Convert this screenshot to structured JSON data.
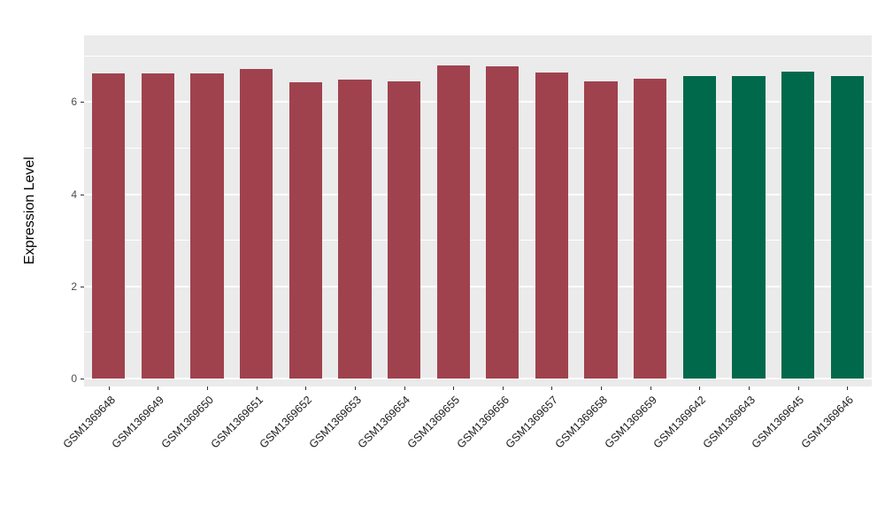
{
  "figure": {
    "background": "#FFFFFF",
    "panel_background": "#EBEBEB",
    "grid_color": "#FFFFFF",
    "tick_color": "#333333",
    "text_color": "#1a1a1a"
  },
  "chart_data": {
    "type": "bar",
    "title": "",
    "xlabel": "",
    "ylabel": "Expression Level",
    "ylim": [
      -0.18,
      7.45
    ],
    "yticks": [
      0,
      2,
      4,
      6
    ],
    "yticks_minor": [
      1,
      3,
      5,
      7
    ],
    "grid": true,
    "legend": "none",
    "categories": [
      "GSM1369648",
      "GSM1369649",
      "GSM1369650",
      "GSM1369651",
      "GSM1369652",
      "GSM1369653",
      "GSM1369654",
      "GSM1369655",
      "GSM1369656",
      "GSM1369657",
      "GSM1369658",
      "GSM1369659",
      "GSM1369642",
      "GSM1369643",
      "GSM1369645",
      "GSM1369646"
    ],
    "values": [
      6.63,
      6.63,
      6.63,
      6.72,
      6.44,
      6.49,
      6.46,
      6.8,
      6.78,
      6.65,
      6.46,
      6.51,
      6.57,
      6.57,
      6.67,
      6.57
    ],
    "groups": [
      "group-a",
      "group-a",
      "group-a",
      "group-a",
      "group-a",
      "group-a",
      "group-a",
      "group-a",
      "group-a",
      "group-a",
      "group-a",
      "group-a",
      "group-b",
      "group-b",
      "group-b",
      "group-b"
    ],
    "group_colors": {
      "group-a": "#A0424E",
      "group-b": "#00694B"
    },
    "bar_width_fraction": 0.67
  }
}
